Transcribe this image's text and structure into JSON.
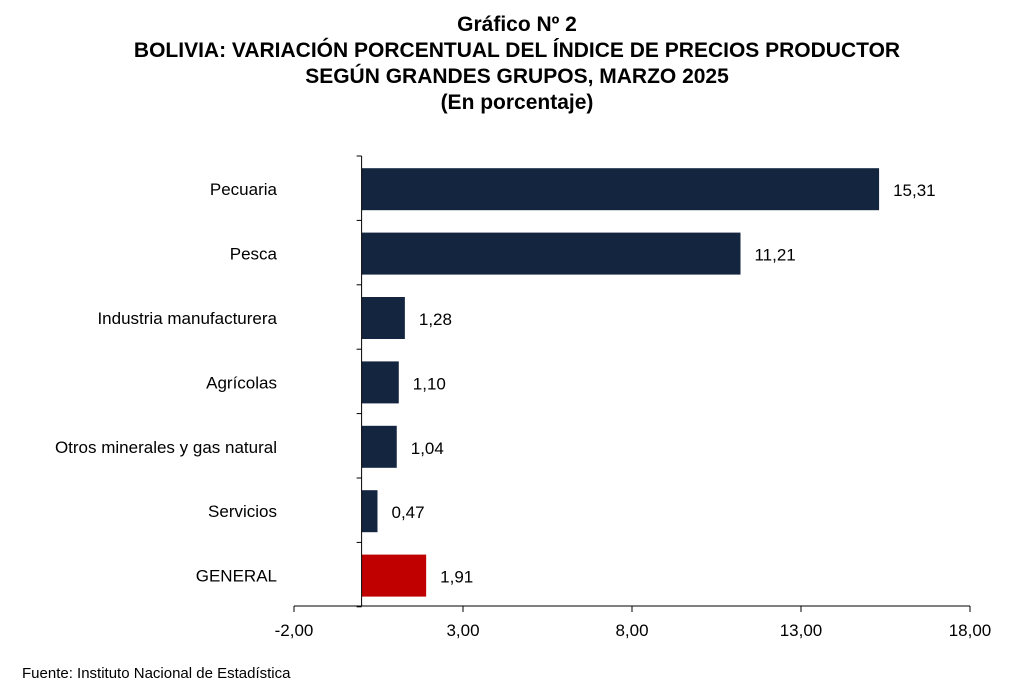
{
  "header": {
    "line1": "Gráfico Nº 2",
    "line2": "BOLIVIA: VARIACIÓN PORCENTUAL DEL ÍNDICE DE PRECIOS PRODUCTOR",
    "line3": "SEGÚN GRANDES GRUPOS, MARZO 2025",
    "line4": "(En porcentaje)"
  },
  "source": "Fuente: Instituto Nacional de Estadística",
  "chart_data": {
    "type": "bar",
    "orientation": "horizontal",
    "title": "Gráfico Nº 2 BOLIVIA: VARIACIÓN PORCENTUAL DEL ÍNDICE DE PRECIOS PRODUCTOR SEGÚN GRANDES GRUPOS, MARZO 2025",
    "subtitle": "(En porcentaje)",
    "categories": [
      "Pecuaria",
      "Pesca",
      "Industria manufacturera",
      "Agrícolas",
      "Otros minerales y gas natural",
      "Servicios",
      "GENERAL"
    ],
    "values": [
      15.31,
      11.21,
      1.28,
      1.1,
      1.04,
      0.47,
      1.91
    ],
    "value_labels": [
      "15,31",
      "11,21",
      "1,28",
      "1,10",
      "1,04",
      "0,47",
      "1,91"
    ],
    "xlim": [
      -2,
      18
    ],
    "x_ticks": [
      -2,
      3,
      8,
      13,
      18
    ],
    "x_tick_labels": [
      "-2,00",
      "3,00",
      "8,00",
      "13,00",
      "18,00"
    ],
    "grid": false,
    "legend": "none",
    "colors": {
      "bar": "#14253f",
      "highlight": "#c00000",
      "axis": "#000000"
    },
    "highlight_category": "GENERAL"
  }
}
